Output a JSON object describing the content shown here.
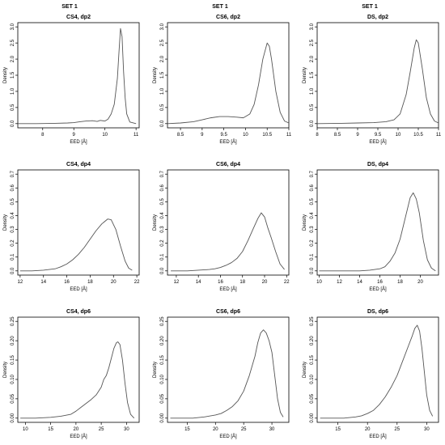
{
  "set_labels": [
    "SET 1",
    "SET 1",
    "SET 1"
  ],
  "chart_data": [
    {
      "type": "line",
      "title": "CS4, dp2",
      "xlabel": "EED [Å]",
      "ylabel": "Density",
      "xlim": [
        7.2,
        11.1
      ],
      "ylim": [
        0,
        3.0
      ],
      "xticks": [
        8,
        9,
        10,
        11
      ],
      "yticks": [
        0.0,
        0.5,
        1.0,
        1.5,
        2.0,
        2.5,
        3.0
      ],
      "series": [
        {
          "x": [
            7.2,
            7.8,
            8.4,
            8.8,
            9.0,
            9.2,
            9.4,
            9.6,
            9.75,
            9.85,
            10.0,
            10.1,
            10.2,
            10.3,
            10.4,
            10.45,
            10.5,
            10.55,
            10.6,
            10.65,
            10.7,
            10.8,
            11.0
          ],
          "y": [
            0.0,
            0.0,
            0.01,
            0.02,
            0.03,
            0.06,
            0.08,
            0.09,
            0.07,
            0.1,
            0.08,
            0.14,
            0.3,
            0.6,
            1.4,
            2.2,
            2.95,
            2.7,
            1.6,
            0.8,
            0.3,
            0.05,
            0.0
          ]
        }
      ]
    },
    {
      "type": "line",
      "title": "CS6, dp2",
      "xlabel": "EED [Å]",
      "ylabel": "Density",
      "xlim": [
        8.2,
        11.0
      ],
      "ylim": [
        0,
        3.0
      ],
      "xticks": [
        8.5,
        9.0,
        9.5,
        10.0,
        10.5,
        11.0
      ],
      "yticks": [
        0.0,
        0.5,
        1.0,
        1.5,
        2.0,
        2.5,
        3.0
      ],
      "series": [
        {
          "x": [
            8.2,
            8.5,
            8.8,
            9.0,
            9.2,
            9.4,
            9.6,
            9.8,
            9.95,
            10.1,
            10.2,
            10.3,
            10.4,
            10.5,
            10.55,
            10.6,
            10.7,
            10.8,
            10.9,
            11.0
          ],
          "y": [
            0.0,
            0.02,
            0.06,
            0.12,
            0.18,
            0.22,
            0.22,
            0.2,
            0.18,
            0.3,
            0.6,
            1.2,
            2.0,
            2.5,
            2.4,
            2.0,
            1.0,
            0.35,
            0.08,
            0.02
          ]
        }
      ]
    },
    {
      "type": "line",
      "title": "DS, dp2",
      "xlabel": "EED [Å]",
      "ylabel": "Density",
      "xlim": [
        8.0,
        11.0
      ],
      "ylim": [
        0,
        3.0
      ],
      "xticks": [
        8.0,
        8.5,
        9.0,
        9.5,
        10.0,
        10.5,
        11.0
      ],
      "yticks": [
        0.0,
        0.5,
        1.0,
        1.5,
        2.0,
        2.5,
        3.0
      ],
      "series": [
        {
          "x": [
            8.0,
            8.6,
            9.0,
            9.4,
            9.7,
            9.9,
            10.05,
            10.2,
            10.3,
            10.4,
            10.45,
            10.5,
            10.6,
            10.7,
            10.8,
            10.9,
            11.0
          ],
          "y": [
            0.0,
            0.01,
            0.02,
            0.03,
            0.06,
            0.12,
            0.3,
            0.9,
            1.6,
            2.35,
            2.6,
            2.5,
            1.7,
            0.8,
            0.3,
            0.08,
            0.02
          ]
        }
      ]
    },
    {
      "type": "line",
      "title": "CS4, dp4",
      "xlabel": "EED [Å]",
      "ylabel": "Density",
      "xlim": [
        11.8,
        22.2
      ],
      "ylim": [
        0,
        0.7
      ],
      "xticks": [
        12,
        14,
        16,
        18,
        20,
        22
      ],
      "yticks": [
        0.0,
        0.1,
        0.2,
        0.3,
        0.4,
        0.5,
        0.6,
        0.7
      ],
      "series": [
        {
          "x": [
            12,
            13,
            14,
            15,
            15.5,
            16,
            16.5,
            17,
            17.5,
            18,
            18.5,
            19,
            19.5,
            19.8,
            20.2,
            20.6,
            21,
            21.3,
            21.6
          ],
          "y": [
            0.0,
            0.0,
            0.005,
            0.015,
            0.03,
            0.05,
            0.08,
            0.12,
            0.17,
            0.23,
            0.29,
            0.34,
            0.375,
            0.37,
            0.3,
            0.18,
            0.07,
            0.02,
            0.005
          ]
        }
      ]
    },
    {
      "type": "line",
      "title": "CS6, dp4",
      "xlabel": "EED [Å]",
      "ylabel": "Density",
      "xlim": [
        11.2,
        22.2
      ],
      "ylim": [
        0,
        0.7
      ],
      "xticks": [
        12,
        14,
        16,
        18,
        20,
        22
      ],
      "yticks": [
        0.0,
        0.1,
        0.2,
        0.3,
        0.4,
        0.5,
        0.6,
        0.7
      ],
      "series": [
        {
          "x": [
            11.5,
            13,
            14,
            15,
            15.5,
            16,
            16.5,
            17,
            17.5,
            18,
            18.5,
            19,
            19.4,
            19.7,
            20,
            20.3,
            20.6,
            21,
            21.4,
            21.8
          ],
          "y": [
            0.0,
            0.0,
            0.005,
            0.01,
            0.015,
            0.025,
            0.04,
            0.06,
            0.09,
            0.14,
            0.22,
            0.31,
            0.38,
            0.42,
            0.39,
            0.31,
            0.24,
            0.14,
            0.05,
            0.01
          ]
        }
      ]
    },
    {
      "type": "line",
      "title": "DS, dp4",
      "xlabel": "EED [Å]",
      "ylabel": "Density",
      "xlim": [
        9.8,
        21.8
      ],
      "ylim": [
        0,
        0.7
      ],
      "xticks": [
        10,
        12,
        14,
        16,
        18,
        20
      ],
      "yticks": [
        0.0,
        0.1,
        0.2,
        0.3,
        0.4,
        0.5,
        0.6,
        0.7
      ],
      "series": [
        {
          "x": [
            10,
            12,
            14,
            15,
            16,
            16.5,
            17,
            17.5,
            18,
            18.5,
            19,
            19.3,
            19.6,
            19.9,
            20.3,
            20.7,
            21.1,
            21.5
          ],
          "y": [
            0.0,
            0.0,
            0.0,
            0.005,
            0.015,
            0.03,
            0.07,
            0.13,
            0.23,
            0.38,
            0.53,
            0.565,
            0.52,
            0.42,
            0.22,
            0.08,
            0.02,
            0.0
          ]
        }
      ]
    },
    {
      "type": "line",
      "title": "CS4, dp6",
      "xlabel": "EED [Å]",
      "ylabel": "Density",
      "xlim": [
        8.5,
        32.5
      ],
      "ylim": [
        0,
        0.25
      ],
      "xticks": [
        10,
        15,
        20,
        25,
        30
      ],
      "yticks": [
        0.0,
        0.05,
        0.1,
        0.15,
        0.2,
        0.25
      ],
      "series": [
        {
          "x": [
            9,
            12,
            15,
            17,
            19,
            20,
            21,
            22,
            23,
            24,
            25,
            25.5,
            26,
            26.5,
            27,
            27.5,
            28,
            28.3,
            28.7,
            29.2,
            29.7,
            30.2,
            30.8,
            31.5
          ],
          "y": [
            0.0,
            0.0,
            0.002,
            0.005,
            0.01,
            0.018,
            0.028,
            0.038,
            0.048,
            0.06,
            0.08,
            0.1,
            0.11,
            0.13,
            0.155,
            0.18,
            0.195,
            0.197,
            0.19,
            0.15,
            0.09,
            0.04,
            0.01,
            0.0
          ]
        }
      ]
    },
    {
      "type": "line",
      "title": "CS6, dp6",
      "xlabel": "EED [Å]",
      "ylabel": "Density",
      "xlim": [
        11.5,
        33
      ],
      "ylim": [
        0,
        0.25
      ],
      "xticks": [
        15,
        20,
        25,
        30
      ],
      "yticks": [
        0.0,
        0.05,
        0.1,
        0.15,
        0.2,
        0.25
      ],
      "series": [
        {
          "x": [
            12,
            16,
            18,
            20,
            21,
            22,
            23,
            24,
            25,
            26,
            27,
            27.5,
            28,
            28.5,
            29,
            29.5,
            30,
            30.5,
            31,
            31.5,
            32
          ],
          "y": [
            0.0,
            0.0,
            0.003,
            0.008,
            0.012,
            0.02,
            0.03,
            0.045,
            0.07,
            0.11,
            0.16,
            0.195,
            0.22,
            0.228,
            0.22,
            0.2,
            0.17,
            0.11,
            0.05,
            0.015,
            0.003
          ]
        }
      ]
    },
    {
      "type": "line",
      "title": "DS, dp6",
      "xlabel": "EED [Å]",
      "ylabel": "Density",
      "xlim": [
        11.5,
        32
      ],
      "ylim": [
        0,
        0.25
      ],
      "xticks": [
        15,
        20,
        25,
        30
      ],
      "yticks": [
        0.0,
        0.05,
        0.1,
        0.15,
        0.2,
        0.25
      ],
      "series": [
        {
          "x": [
            12,
            16,
            18,
            19,
            20,
            21,
            22,
            23,
            24,
            25,
            26,
            27,
            27.5,
            28,
            28.4,
            28.8,
            29.2,
            29.6,
            30,
            30.5,
            31
          ],
          "y": [
            0.0,
            0.0,
            0.003,
            0.006,
            0.012,
            0.02,
            0.035,
            0.055,
            0.08,
            0.11,
            0.15,
            0.19,
            0.21,
            0.232,
            0.24,
            0.225,
            0.18,
            0.12,
            0.06,
            0.02,
            0.005
          ]
        }
      ]
    }
  ]
}
